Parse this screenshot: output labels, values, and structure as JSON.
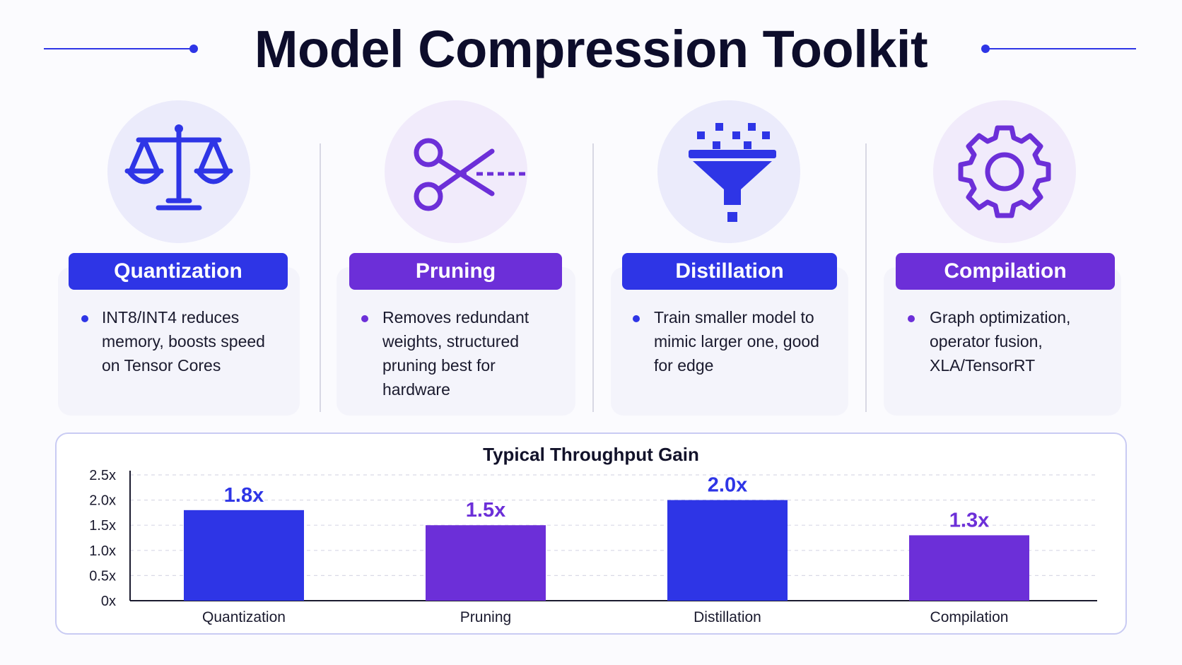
{
  "header": {
    "title": "Model Compression Toolkit",
    "accent_color": "#2e35e6"
  },
  "techniques": [
    {
      "name": "Quantization",
      "icon": "balance-scale-icon",
      "color": "#2e35e6",
      "description": "INT8/INT4 reduces memory, boosts speed on Tensor Cores"
    },
    {
      "name": "Pruning",
      "icon": "scissors-icon",
      "color": "#6c2fd8",
      "description": "Removes redundant weights, structured pruning best for hardware"
    },
    {
      "name": "Distillation",
      "icon": "funnel-icon",
      "color": "#2e35e6",
      "description": "Train smaller model to mimic larger one, good for edge"
    },
    {
      "name": "Compilation",
      "icon": "gear-icon",
      "color": "#6c2fd8",
      "description": "Graph optimization, operator fusion, XLA/TensorRT"
    }
  ],
  "chart_data": {
    "type": "bar",
    "title": "Typical Throughput Gain",
    "categories": [
      "Quantization",
      "Pruning",
      "Distillation",
      "Compilation"
    ],
    "values": [
      1.8,
      1.5,
      2.0,
      1.3
    ],
    "value_labels": [
      "1.8x",
      "1.5x",
      "2.0x",
      "1.3x"
    ],
    "bar_colors": [
      "#2e35e6",
      "#6c2fd8",
      "#2e35e6",
      "#6c2fd8"
    ],
    "ylim": [
      0,
      2.5
    ],
    "y_ticks": [
      0,
      0.5,
      1.0,
      1.5,
      2.0,
      2.5
    ],
    "y_tick_labels": [
      "0x",
      "0.5x",
      "1.0x",
      "1.5x",
      "2.0x",
      "2.5x"
    ],
    "grid": true,
    "xlabel": "",
    "ylabel": ""
  }
}
